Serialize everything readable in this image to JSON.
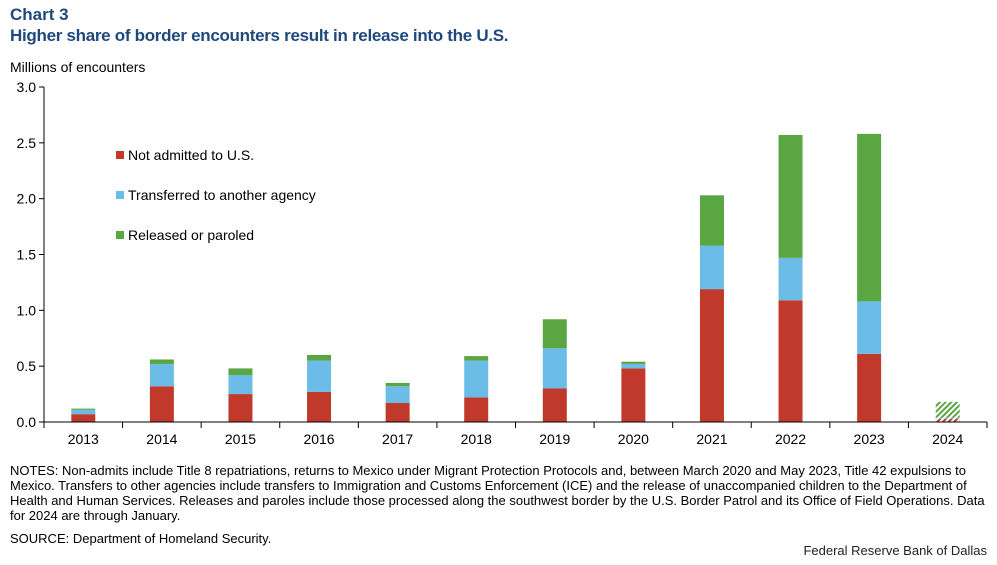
{
  "chart_data": {
    "type": "bar",
    "stacked": true,
    "label": "Chart 3",
    "title": "Higher share of border encounters result in release into the U.S.",
    "ylabel": "Millions of encounters",
    "xlabel": "",
    "ylim": [
      0,
      3.0
    ],
    "yticks": [
      "0.0",
      "0.5",
      "1.0",
      "1.5",
      "2.0",
      "2.5",
      "3.0"
    ],
    "grid": false,
    "legend_position": "top-left",
    "categories": [
      "2013",
      "2014",
      "2015",
      "2016",
      "2017",
      "2018",
      "2019",
      "2020",
      "2021",
      "2022",
      "2023",
      "2024"
    ],
    "partial_categories": [
      "2024"
    ],
    "series": [
      {
        "name": "Not admitted to U.S.",
        "color": "#c0392b",
        "values": [
          0.07,
          0.32,
          0.25,
          0.27,
          0.17,
          0.22,
          0.3,
          0.48,
          1.19,
          1.09,
          0.61,
          0.03
        ]
      },
      {
        "name": "Transferred to another agency",
        "color": "#6bbde8",
        "values": [
          0.04,
          0.2,
          0.17,
          0.28,
          0.15,
          0.33,
          0.36,
          0.04,
          0.39,
          0.38,
          0.47,
          0.01
        ]
      },
      {
        "name": "Released or paroled",
        "color": "#5aa642",
        "values": [
          0.01,
          0.04,
          0.06,
          0.05,
          0.03,
          0.04,
          0.26,
          0.02,
          0.45,
          1.1,
          1.5,
          0.14
        ]
      }
    ]
  },
  "notes": "NOTES: Non-admits include Title 8 repatriations, returns to Mexico under Migrant Protection Protocols and, between March 2020 and May 2023, Title 42 expulsions to Mexico. Transfers to other agencies include transfers to Immigration and Customs Enforcement (ICE) and the release of unaccompanied children to the Department of Health and Human Services. Releases and paroles include those processed along the southwest border by the U.S. Border Patrol and its Office of Field Operations. Data for 2024 are through January.",
  "source": "SOURCE: Department of Homeland Security.",
  "credit": "Federal Reserve Bank of Dallas"
}
